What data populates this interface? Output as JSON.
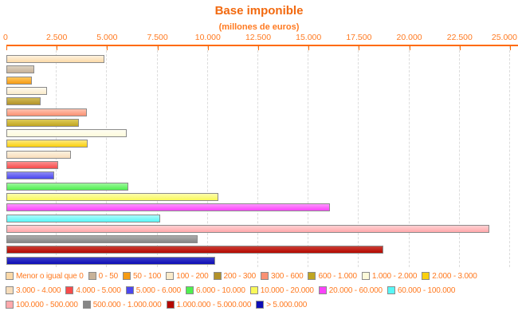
{
  "header": {
    "title": "Base imponible",
    "subtitle": "(millones de euros)"
  },
  "colors": {
    "title_text": "#F2690F",
    "axis_line": "#FF6A00",
    "tick_text": "#FF7A21",
    "legend_text": "#FF7A21",
    "gridline": "#DCDCDC",
    "bar_border": "#8B8B8B",
    "background": "#FFFFFF"
  },
  "chart_data": {
    "type": "bar",
    "orientation": "horizontal",
    "title": "Base imponible",
    "subtitle": "(millones de euros)",
    "xlabel": "millones de euros",
    "ylabel": "",
    "xlim": [
      0,
      25000
    ],
    "x_tick_values": [
      0,
      2500,
      5000,
      7500,
      10000,
      12500,
      15000,
      17500,
      20000,
      22500,
      25000
    ],
    "x_ticks": [
      "0",
      "2.500",
      "5.000",
      "7.500",
      "10.000",
      "12.500",
      "15.000",
      "17.500",
      "20.000",
      "22.500",
      "25.000"
    ],
    "grid": "vertical-dashed",
    "legend_position": "bottom",
    "categories": [
      "Menor o igual que 0",
      "0 - 50",
      "50 - 100",
      "100 - 200",
      "200 - 300",
      "300 - 600",
      "600 - 1.000",
      "1.000 - 2.000",
      "2.000 - 3.000",
      "3.000 - 4.000",
      "4.000 - 5.000",
      "5.000 - 6.000",
      "6.000 - 10.000",
      "10.000 - 20.000",
      "20.000 - 60.000",
      "60.000 - 100.000",
      "100.000 - 500.000",
      "500.000 - 1.000.000",
      "1.000.000 - 5.000.000",
      "> 5.000.000"
    ],
    "values": [
      4775,
      1300,
      1175,
      1925,
      1625,
      3900,
      3525,
      5875,
      3950,
      3125,
      2500,
      2275,
      5975,
      10425,
      15975,
      7575,
      23900,
      9400,
      18625,
      10300
    ],
    "bar_colors": [
      "#FBD9A8",
      "#C7B299",
      "#F59B13",
      "#FAEBCB",
      "#B2922A",
      "#FB9173",
      "#C0A521",
      "#FDFADA",
      "#FAD00E",
      "#F7DDBB",
      "#F74B4B",
      "#4B47EE",
      "#4FEF4F",
      "#F9F95A",
      "#FA43FA",
      "#58F7F7",
      "#FFA9AC",
      "#868686",
      "#B50800",
      "#0E0EB6"
    ],
    "bar_colors_light": [
      "#FEF2DE",
      "#DCD2C0",
      "#FFC75E",
      "#FEF8EC",
      "#D2BC56",
      "#FEC3B0",
      "#DECB58",
      "#FFFEF2",
      "#FEE97E",
      "#FDF1DF",
      "#FB9090",
      "#8D8AF6",
      "#9DF89D",
      "#FDFDAB",
      "#FD94FD",
      "#ACFBFB",
      "#FFD0D2",
      "#ABABAB",
      "#C93D34",
      "#3C3CC6"
    ],
    "legend_rows": [
      9,
      7,
      4
    ]
  }
}
